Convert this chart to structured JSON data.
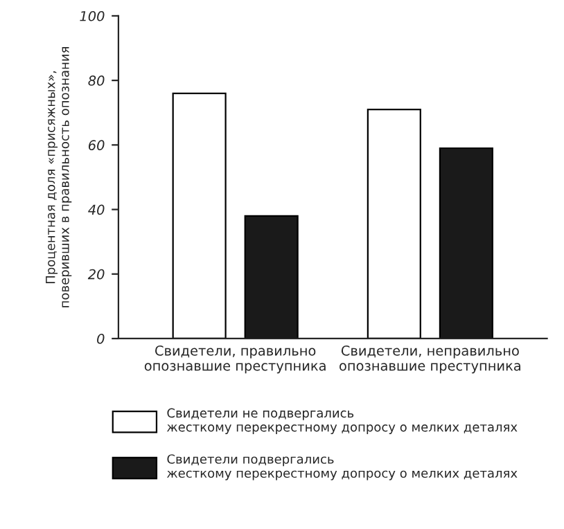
{
  "chart_data": {
    "type": "bar",
    "ylabel": "Процентная доля «присяжных»,\nповеривших в правильность опознания",
    "categories": [
      "Свидетели, правильно\nопознавшие преступника",
      "Свидетели, неправильно\nопознавшие преступника"
    ],
    "series": [
      {
        "name": "Свидетели не подвергались\nжесткому перекрестному допросу о мелких деталях",
        "color": "#ffffff",
        "values": [
          76,
          71
        ]
      },
      {
        "name": "Свидетели подвергались\nжесткому перекрестному допросу о мелких деталях",
        "color": "#1a1a1a",
        "values": [
          38,
          59
        ]
      }
    ],
    "ylim": [
      0,
      100
    ],
    "yticks": [
      0,
      20,
      40,
      60,
      80,
      100
    ],
    "grid": false,
    "legend": "bottom"
  }
}
